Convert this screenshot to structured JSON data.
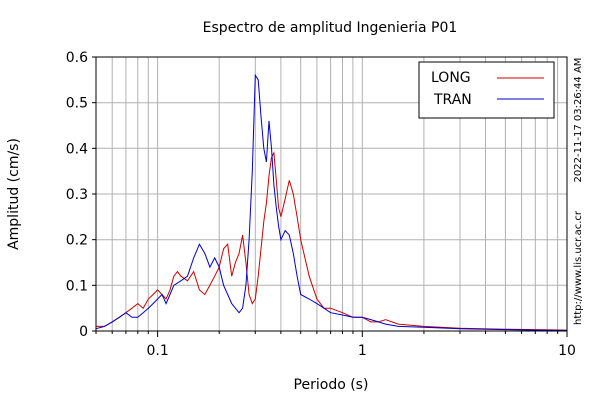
{
  "chart_data": {
    "type": "line",
    "title": "Espectro de amplitud Ingenieria P01",
    "xlabel": "Periodo (s)",
    "ylabel": "Amplitud (cm/s)",
    "x_scale": "log",
    "xlim": [
      0.05,
      10
    ],
    "ylim": [
      0,
      0.6
    ],
    "x_ticks": [
      {
        "value": 0.1,
        "label": "0.1"
      },
      {
        "value": 1,
        "label": "1"
      },
      {
        "value": 10,
        "label": "10"
      }
    ],
    "y_ticks": [
      {
        "value": 0,
        "label": "0"
      },
      {
        "value": 0.1,
        "label": "0.1"
      },
      {
        "value": 0.2,
        "label": "0.2"
      },
      {
        "value": 0.3,
        "label": "0.3"
      },
      {
        "value": 0.4,
        "label": "0.4"
      },
      {
        "value": 0.5,
        "label": "0.5"
      },
      {
        "value": 0.6,
        "label": "0.6"
      }
    ],
    "grid": true,
    "legend_position": "top-right",
    "series": [
      {
        "name": "LONG",
        "color": "#cc0000",
        "x": [
          0.05,
          0.055,
          0.06,
          0.065,
          0.07,
          0.075,
          0.08,
          0.085,
          0.09,
          0.095,
          0.1,
          0.105,
          0.11,
          0.115,
          0.12,
          0.125,
          0.13,
          0.14,
          0.15,
          0.16,
          0.17,
          0.18,
          0.19,
          0.2,
          0.21,
          0.22,
          0.23,
          0.24,
          0.25,
          0.26,
          0.27,
          0.28,
          0.29,
          0.3,
          0.31,
          0.32,
          0.33,
          0.34,
          0.35,
          0.36,
          0.37,
          0.38,
          0.39,
          0.4,
          0.42,
          0.44,
          0.46,
          0.48,
          0.5,
          0.55,
          0.6,
          0.65,
          0.7,
          0.8,
          0.9,
          1.0,
          1.1,
          1.2,
          1.3,
          1.5,
          2.0,
          3.0,
          5.0,
          7.0,
          10.0
        ],
        "y": [
          0.01,
          0.01,
          0.02,
          0.03,
          0.04,
          0.05,
          0.06,
          0.05,
          0.07,
          0.08,
          0.09,
          0.08,
          0.07,
          0.09,
          0.12,
          0.13,
          0.12,
          0.11,
          0.13,
          0.09,
          0.08,
          0.1,
          0.12,
          0.14,
          0.18,
          0.19,
          0.12,
          0.15,
          0.17,
          0.21,
          0.15,
          0.08,
          0.06,
          0.07,
          0.12,
          0.18,
          0.24,
          0.28,
          0.34,
          0.38,
          0.39,
          0.33,
          0.27,
          0.25,
          0.29,
          0.33,
          0.3,
          0.25,
          0.2,
          0.12,
          0.07,
          0.05,
          0.05,
          0.04,
          0.03,
          0.03,
          0.02,
          0.02,
          0.025,
          0.015,
          0.01,
          0.006,
          0.004,
          0.003,
          0.002
        ]
      },
      {
        "name": "TRAN",
        "color": "#0000cc",
        "x": [
          0.05,
          0.055,
          0.06,
          0.065,
          0.07,
          0.075,
          0.08,
          0.085,
          0.09,
          0.095,
          0.1,
          0.105,
          0.11,
          0.115,
          0.12,
          0.13,
          0.14,
          0.15,
          0.16,
          0.165,
          0.17,
          0.18,
          0.19,
          0.2,
          0.21,
          0.22,
          0.23,
          0.24,
          0.25,
          0.26,
          0.27,
          0.28,
          0.29,
          0.3,
          0.31,
          0.32,
          0.33,
          0.34,
          0.35,
          0.36,
          0.37,
          0.38,
          0.39,
          0.4,
          0.42,
          0.44,
          0.46,
          0.48,
          0.5,
          0.55,
          0.6,
          0.65,
          0.7,
          0.8,
          0.9,
          1.0,
          1.1,
          1.2,
          1.3,
          1.5,
          2.0,
          3.0,
          5.0,
          7.0,
          10.0
        ],
        "y": [
          0.005,
          0.01,
          0.02,
          0.03,
          0.04,
          0.03,
          0.03,
          0.04,
          0.05,
          0.06,
          0.07,
          0.08,
          0.06,
          0.08,
          0.1,
          0.11,
          0.12,
          0.16,
          0.19,
          0.18,
          0.17,
          0.14,
          0.16,
          0.14,
          0.1,
          0.08,
          0.06,
          0.05,
          0.04,
          0.05,
          0.1,
          0.2,
          0.35,
          0.56,
          0.55,
          0.47,
          0.4,
          0.37,
          0.46,
          0.4,
          0.32,
          0.27,
          0.23,
          0.2,
          0.22,
          0.21,
          0.17,
          0.12,
          0.08,
          0.07,
          0.06,
          0.05,
          0.04,
          0.035,
          0.03,
          0.03,
          0.025,
          0.02,
          0.015,
          0.01,
          0.008,
          0.005,
          0.003,
          0.002,
          0.001
        ]
      }
    ],
    "side_annotations": {
      "timestamp": "2022-11-17 03:26:44 AM",
      "url": "http://www.lis.ucr.ac.cr"
    }
  }
}
